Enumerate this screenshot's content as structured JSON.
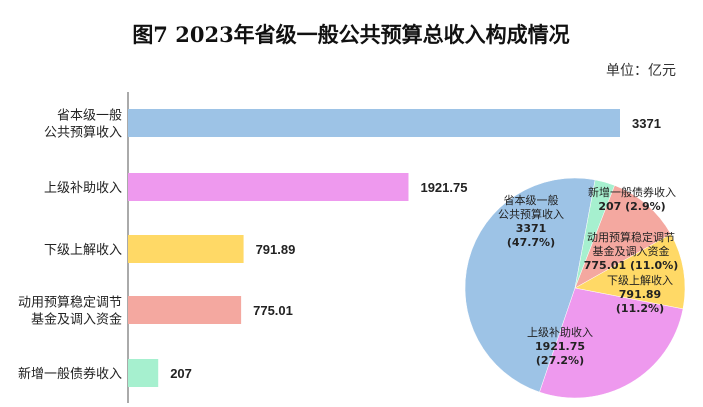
{
  "title": "图7   2023年省级一般公共预算总收入构成情况",
  "unit_label": "单位：亿元",
  "chart_data": [
    {
      "type": "bar",
      "orientation": "horizontal",
      "categories": [
        [
          "省本级一般",
          "公共预算收入"
        ],
        [
          "上级补助收入"
        ],
        [
          "下级上解收入"
        ],
        [
          "动用预算稳定调节",
          "基金及调入资金"
        ],
        [
          "新增一般债券收入"
        ]
      ],
      "values": [
        3371,
        1921.75,
        791.89,
        775.01,
        207
      ],
      "value_labels": [
        "3371",
        "1921.75",
        "791.89",
        "775.01",
        "207"
      ],
      "colors": [
        "#9dc3e6",
        "#ee99ee",
        "#ffd966",
        "#f4a8a0",
        "#a6f0cf"
      ],
      "unit": "亿元"
    },
    {
      "type": "pie",
      "slices": [
        {
          "label": [
            "省本级一般",
            "公共预算收入"
          ],
          "value": 3371,
          "value_label": "3371",
          "pct_label": "(47.7%)",
          "color": "#9dc3e6"
        },
        {
          "label": [
            "上级补助收入"
          ],
          "value": 1921.75,
          "value_label": "1921.75",
          "pct_label": "(27.2%)",
          "color": "#ee99ee"
        },
        {
          "label": [
            "下级上解收入"
          ],
          "value": 791.89,
          "value_label": "791.89",
          "pct_label": "(11.2%)",
          "color": "#ffd966"
        },
        {
          "label": [
            "动用预算稳定调节",
            "基金及调入资金"
          ],
          "value": 775.01,
          "value_label": "775.01",
          "pct_label": "(11.0%)",
          "color": "#f4a8a0"
        },
        {
          "label": [
            "新增一般债券收入"
          ],
          "value": 207,
          "value_label": "207",
          "pct_label": "(2.9%)",
          "color": "#a6f0cf"
        }
      ]
    }
  ]
}
